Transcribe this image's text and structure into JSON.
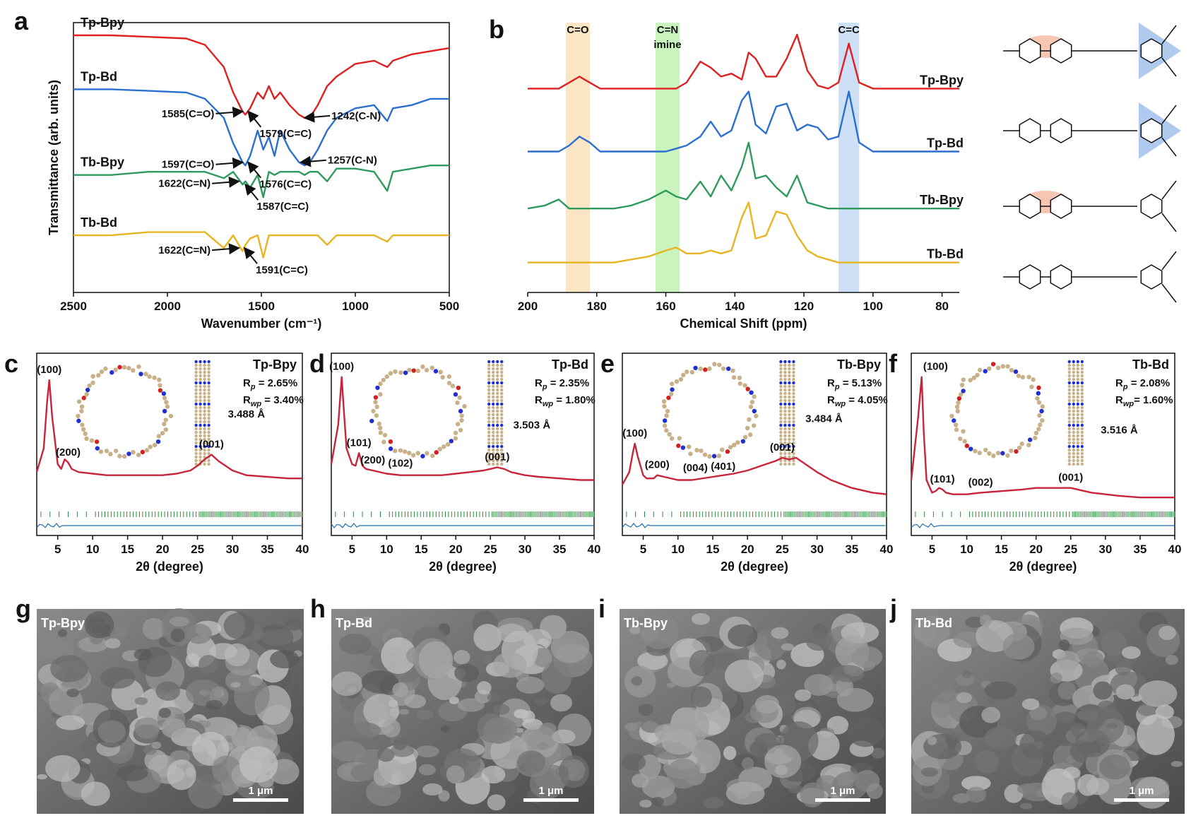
{
  "chart_data": [
    {
      "type": "line",
      "panel": "a",
      "frame": true,
      "label_position": "start",
      "x_label": "Wavenumber (cm⁻¹)",
      "y_label": "Transmittance (arb. units)",
      "xlim": [
        2500,
        500
      ],
      "xticks": [
        2500,
        2000,
        1500,
        1000,
        500
      ],
      "ylim": [
        15,
        100
      ],
      "x": [
        2500,
        2300,
        2100,
        1900,
        1800,
        1700,
        1650,
        1600,
        1585,
        1560,
        1520,
        1490,
        1460,
        1430,
        1400,
        1350,
        1300,
        1270,
        1242,
        1200,
        1150,
        1100,
        1000,
        900,
        830,
        800,
        700,
        600,
        500
      ],
      "series": [
        {
          "name": "Tp-Bpy",
          "color": "#e02020",
          "values": [
            96,
            96,
            95.5,
            95,
            93,
            86,
            78,
            72,
            71,
            73,
            78,
            76,
            80,
            76,
            78,
            74,
            71,
            70,
            70,
            74,
            80,
            83,
            87,
            88,
            86,
            88,
            90,
            91,
            92
          ]
        },
        {
          "name": "Tp-Bd",
          "color": "#2b6fcf",
          "values": [
            79,
            79,
            78.5,
            78,
            76,
            70,
            62,
            56,
            55,
            58,
            66,
            60,
            64,
            58,
            66,
            60,
            56,
            55,
            56,
            60,
            66,
            70,
            73,
            74,
            69,
            73,
            74,
            76,
            76
          ]
        },
        {
          "name": "Tb-Bpy",
          "color": "#2e9a5e",
          "values": [
            52,
            52,
            53,
            53,
            53,
            51,
            53,
            49,
            50,
            48,
            52,
            45,
            53,
            52,
            53,
            53,
            53,
            52,
            53,
            53,
            50,
            54,
            54,
            53,
            47,
            53,
            54,
            55,
            55
          ]
        },
        {
          "name": "Tb-Bd",
          "color": "#e8b422",
          "values": [
            33,
            33,
            34,
            34,
            34,
            29,
            33,
            28,
            30,
            32,
            33,
            26,
            33,
            33,
            33,
            33,
            33,
            33,
            33,
            33,
            30,
            33,
            33,
            33,
            31,
            33,
            33,
            33,
            33
          ]
        }
      ],
      "annotations": [
        {
          "text": "1585(C=O)",
          "x": 1600,
          "y": 72,
          "side": "left"
        },
        {
          "text": "1579(C=C)",
          "x": 1570,
          "y": 72,
          "side": "below"
        },
        {
          "text": "1242(C-N)",
          "x": 1270,
          "y": 70,
          "side": "right"
        },
        {
          "text": "1597(C=O)",
          "x": 1600,
          "y": 56,
          "side": "left"
        },
        {
          "text": "1576(C=C)",
          "x": 1570,
          "y": 56,
          "side": "below"
        },
        {
          "text": "1257(C-N)",
          "x": 1290,
          "y": 56,
          "side": "right"
        },
        {
          "text": "1622(C=N)",
          "x": 1620,
          "y": 50,
          "side": "left"
        },
        {
          "text": "1587(C=C)",
          "x": 1585,
          "y": 49,
          "side": "below"
        },
        {
          "text": "1622(C=N)",
          "x": 1620,
          "y": 29,
          "side": "left"
        },
        {
          "text": "1591(C=C)",
          "x": 1590,
          "y": 29,
          "side": "below"
        }
      ]
    },
    {
      "type": "line",
      "panel": "b",
      "frame": false,
      "label_position": "end",
      "x_label": "Chemical Shift (ppm)",
      "xlim": [
        200,
        75
      ],
      "xticks": [
        200,
        180,
        160,
        140,
        120,
        100,
        80
      ],
      "ylim": [
        10,
        100
      ],
      "x": [
        200,
        195,
        191,
        188,
        185,
        182,
        179,
        175,
        170,
        165,
        160,
        157,
        154,
        150,
        147,
        144,
        141,
        138,
        136,
        134,
        131,
        128,
        125,
        122,
        119,
        116,
        113,
        110,
        107,
        104,
        100,
        95,
        90,
        85,
        80,
        75
      ],
      "bands": [
        {
          "label": [
            "C=O"
          ],
          "range": [
            189,
            182
          ],
          "color": "#f8dcb0"
        },
        {
          "label": [
            "C=N",
            "imine"
          ],
          "range": [
            163,
            156
          ],
          "color": "#b8f0a8"
        },
        {
          "label": [
            "C=C"
          ],
          "range": [
            110,
            104
          ],
          "color": "#bcd6f2"
        }
      ],
      "series": [
        {
          "name": "Tp-Bpy",
          "color": "#e02020",
          "values": [
            78,
            78,
            78,
            80,
            82,
            80,
            78,
            78,
            78,
            78,
            78,
            78,
            80,
            87,
            85,
            82,
            83,
            81,
            90,
            88,
            82,
            82,
            88,
            96,
            84,
            79,
            78,
            80,
            93,
            80,
            78,
            78,
            78,
            78,
            78,
            78
          ]
        },
        {
          "name": "Tp-Bd",
          "color": "#2b6fcf",
          "values": [
            57,
            57,
            57,
            59,
            62,
            60,
            57,
            57,
            57,
            57,
            57,
            58,
            59,
            62,
            67,
            62,
            64,
            74,
            77,
            66,
            63,
            72,
            73,
            64,
            66,
            65,
            61,
            62,
            77,
            60,
            57,
            57,
            57,
            57,
            57,
            57
          ]
        },
        {
          "name": "Tb-Bpy",
          "color": "#2e9a5e",
          "values": [
            38,
            39,
            41,
            38,
            38,
            38,
            38,
            38,
            39,
            41,
            44,
            42,
            41,
            47,
            42,
            49,
            44,
            52,
            60,
            48,
            49,
            45,
            42,
            49,
            40,
            39,
            38,
            38,
            38,
            38,
            38,
            38,
            38,
            38,
            38,
            38
          ]
        },
        {
          "name": "Tb-Bd",
          "color": "#e8b422",
          "values": [
            20,
            20,
            20,
            20,
            20,
            20,
            20,
            20,
            21,
            22,
            24,
            25,
            23,
            23,
            24,
            23,
            24,
            35,
            40,
            28,
            29,
            37,
            36,
            29,
            24,
            22,
            21,
            20,
            20,
            20,
            20,
            20,
            20,
            20,
            20,
            20
          ]
        }
      ]
    },
    {
      "type": "line",
      "panel": "c",
      "frame": true,
      "label_position": "top-right",
      "x_label": "2θ (degree)",
      "xlim": [
        2,
        40
      ],
      "xticks": [
        5,
        10,
        15,
        20,
        25,
        30,
        35,
        40
      ],
      "ylim": [
        0,
        115
      ],
      "x": [
        2,
        3,
        3.5,
        3.8,
        4.2,
        5,
        5.5,
        6,
        6.5,
        7,
        8,
        10,
        12,
        15,
        18,
        20,
        22,
        24,
        25,
        26,
        27,
        28,
        30,
        32,
        35,
        38,
        40
      ],
      "series": [
        {
          "name": "Tp-Bpy",
          "color": "#c8243c",
          "name_color": "#e02020",
          "values": [
            40,
            55,
            85,
            98,
            75,
            45,
            42,
            48,
            46,
            42,
            40,
            39,
            38,
            38,
            38,
            38,
            39,
            41,
            44,
            48,
            51,
            47,
            41,
            38,
            37,
            36,
            36
          ]
        }
      ],
      "fit": [
        {
          "symbol": "R",
          "sub": "p",
          "text": " = 2.65%"
        },
        {
          "symbol": "R",
          "sub": "wp",
          "text": " = 3.40%"
        }
      ],
      "annotations": [
        {
          "text": "(100)",
          "x": 3.8,
          "y": 98
        },
        {
          "text": "(200)",
          "x": 6.5,
          "y": 46
        },
        {
          "text": "(001)",
          "x": 27,
          "y": 51
        },
        {
          "text": "3.488 Å",
          "x": 32,
          "y": 70
        }
      ]
    },
    {
      "type": "line",
      "panel": "d",
      "frame": true,
      "label_position": "top-right",
      "x_label": "2θ (degree)",
      "xlim": [
        2,
        40
      ],
      "xticks": [
        5,
        10,
        15,
        20,
        25,
        30,
        35,
        40
      ],
      "ylim": [
        0,
        115
      ],
      "x": [
        2,
        3,
        3.5,
        3.8,
        4.2,
        5,
        5.5,
        6,
        6.5,
        7,
        8,
        10,
        12,
        15,
        18,
        20,
        22,
        24,
        25,
        26,
        27,
        28,
        30,
        32,
        35,
        38,
        40
      ],
      "series": [
        {
          "name": "Tp-Bd",
          "color": "#c8243c",
          "name_color": "#2b6fcf",
          "values": [
            45,
            70,
            100,
            80,
            55,
            45,
            44,
            52,
            44,
            42,
            41,
            39,
            38,
            38,
            38,
            39,
            40,
            41,
            42,
            43,
            42,
            40,
            38,
            37,
            36,
            35,
            35
          ]
        }
      ],
      "fit": [
        {
          "symbol": "R",
          "sub": "p",
          "text": " = 2.35%"
        },
        {
          "symbol": "R",
          "sub": "wp",
          "text": " = 1.80%"
        }
      ],
      "annotations": [
        {
          "text": "(100)",
          "x": 3.5,
          "y": 100
        },
        {
          "text": "(101)",
          "x": 6,
          "y": 52
        },
        {
          "text": "(200)",
          "x": 8,
          "y": 41
        },
        {
          "text": "(102)",
          "x": 12,
          "y": 39
        },
        {
          "text": "(001)",
          "x": 26,
          "y": 43
        },
        {
          "text": "3.503 Å",
          "x": 31,
          "y": 63
        }
      ]
    },
    {
      "type": "line",
      "panel": "e",
      "frame": true,
      "label_position": "top-right",
      "x_label": "2θ (degree)",
      "xlim": [
        2,
        40
      ],
      "xticks": [
        5,
        10,
        15,
        20,
        25,
        30,
        35,
        40
      ],
      "ylim": [
        0,
        115
      ],
      "x": [
        2,
        3,
        3.5,
        3.8,
        4.2,
        5,
        5.5,
        6,
        6.5,
        7,
        8,
        10,
        12,
        15,
        18,
        20,
        22,
        24,
        25,
        26,
        27,
        28,
        30,
        32,
        35,
        38,
        40
      ],
      "series": [
        {
          "name": "Tb-Bpy",
          "color": "#c8243c",
          "name_color": "#2e9a5e",
          "values": [
            32,
            40,
            52,
            58,
            50,
            38,
            36,
            36,
            36,
            38,
            37,
            35,
            35,
            37,
            39,
            41,
            44,
            47,
            49,
            48,
            49,
            46,
            40,
            35,
            30,
            27,
            26
          ]
        }
      ],
      "fit": [
        {
          "symbol": "R",
          "sub": "p",
          "text": " = 5.13%"
        },
        {
          "symbol": "R",
          "sub": "wp",
          "text": " = 4.05%"
        }
      ],
      "annotations": [
        {
          "text": "(100)",
          "x": 3.8,
          "y": 58
        },
        {
          "text": "(200)",
          "x": 7,
          "y": 38
        },
        {
          "text": "(004)",
          "x": 12.5,
          "y": 36
        },
        {
          "text": "(401)",
          "x": 16.5,
          "y": 37
        },
        {
          "text": "(001)",
          "x": 25,
          "y": 49
        },
        {
          "text": "3.484 Å",
          "x": 31,
          "y": 67
        }
      ]
    },
    {
      "type": "line",
      "panel": "f",
      "frame": true,
      "label_position": "top-right",
      "x_label": "2θ (degree)",
      "xlim": [
        2,
        40
      ],
      "xticks": [
        5,
        10,
        15,
        20,
        25,
        30,
        35,
        40
      ],
      "ylim": [
        0,
        115
      ],
      "x": [
        2,
        3,
        3.5,
        3.8,
        4.2,
        5,
        5.5,
        6,
        6.5,
        7,
        8,
        10,
        12,
        15,
        18,
        20,
        22,
        24,
        25,
        26,
        27,
        28,
        30,
        32,
        35,
        38,
        40
      ],
      "series": [
        {
          "name": "Tb-Bd",
          "color": "#c8243c",
          "name_color": "#e8b422",
          "values": [
            35,
            75,
            100,
            65,
            35,
            27,
            28,
            30,
            29,
            27,
            26,
            26,
            27,
            28,
            29,
            30,
            30,
            30,
            30,
            29,
            28,
            27,
            26,
            25,
            24,
            24,
            24
          ]
        }
      ],
      "fit": [
        {
          "symbol": "R",
          "sub": "p",
          "text": " = 2.08%"
        },
        {
          "symbol": "R",
          "sub": "wp",
          "text": "= 1.60%"
        }
      ],
      "annotations": [
        {
          "text": "(100)",
          "x": 5.5,
          "y": 100
        },
        {
          "text": "(101)",
          "x": 6.5,
          "y": 29
        },
        {
          "text": "(002)",
          "x": 12,
          "y": 27
        },
        {
          "text": "(001)",
          "x": 25,
          "y": 30
        },
        {
          "text": "3.516 Å",
          "x": 32,
          "y": 60
        }
      ]
    }
  ],
  "sem_images": [
    {
      "panel": "g",
      "label": "Tp-Bpy",
      "scale": "1 μm"
    },
    {
      "panel": "h",
      "label": "Tp-Bd",
      "scale": "1 μm"
    },
    {
      "panel": "i",
      "label": "Tb-Bpy",
      "scale": "1 μm"
    },
    {
      "panel": "j",
      "label": "Tb-Bd",
      "scale": "1 μm"
    }
  ]
}
